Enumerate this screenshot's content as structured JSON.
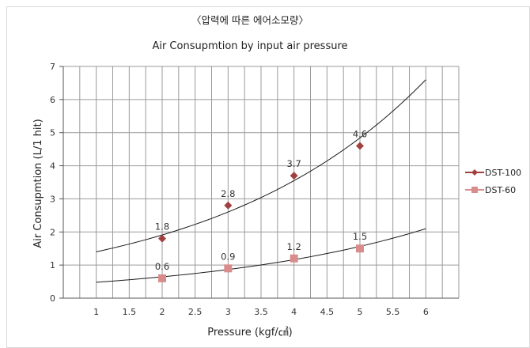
{
  "chart_data": {
    "type": "scatter",
    "title": "〈압력에 따른 에어소모량〉",
    "subtitle": "Air Consupmtion by input air pressure",
    "xlabel": "Pressure (kgf/㎠)",
    "ylabel": "Air Consupmtion (L/1 hit)",
    "xlim": [
      0.5,
      6.5
    ],
    "ylim": [
      0,
      7
    ],
    "x_ticks": [
      "1",
      "1.5",
      "2",
      "2.5",
      "3",
      "3.5",
      "4",
      "4.5",
      "5",
      "5.5",
      "6"
    ],
    "y_ticks": [
      "0",
      "1",
      "2",
      "3",
      "4",
      "5",
      "6",
      "7"
    ],
    "grid": true,
    "legend_position": "right",
    "series": [
      {
        "name": "DST-100",
        "marker": "diamond",
        "color": "#a0413f",
        "x": [
          2,
          3,
          4,
          5
        ],
        "y": [
          1.8,
          2.8,
          3.7,
          4.6
        ],
        "labels": [
          "1.8",
          "2.8",
          "3.7",
          "4.6"
        ],
        "trendline": {
          "type": "exponential",
          "x_range": [
            1,
            6
          ],
          "y_start": 1.4,
          "y_end": 6.6
        }
      },
      {
        "name": "DST-60",
        "marker": "square",
        "color": "#d98c8c",
        "x": [
          2,
          3,
          4,
          5
        ],
        "y": [
          0.6,
          0.9,
          1.2,
          1.5
        ],
        "labels": [
          "0.6",
          "0.9",
          "1.2",
          "1.5"
        ],
        "trendline": {
          "type": "exponential",
          "x_range": [
            1,
            6
          ],
          "y_start": 0.48,
          "y_end": 2.1
        }
      }
    ]
  }
}
